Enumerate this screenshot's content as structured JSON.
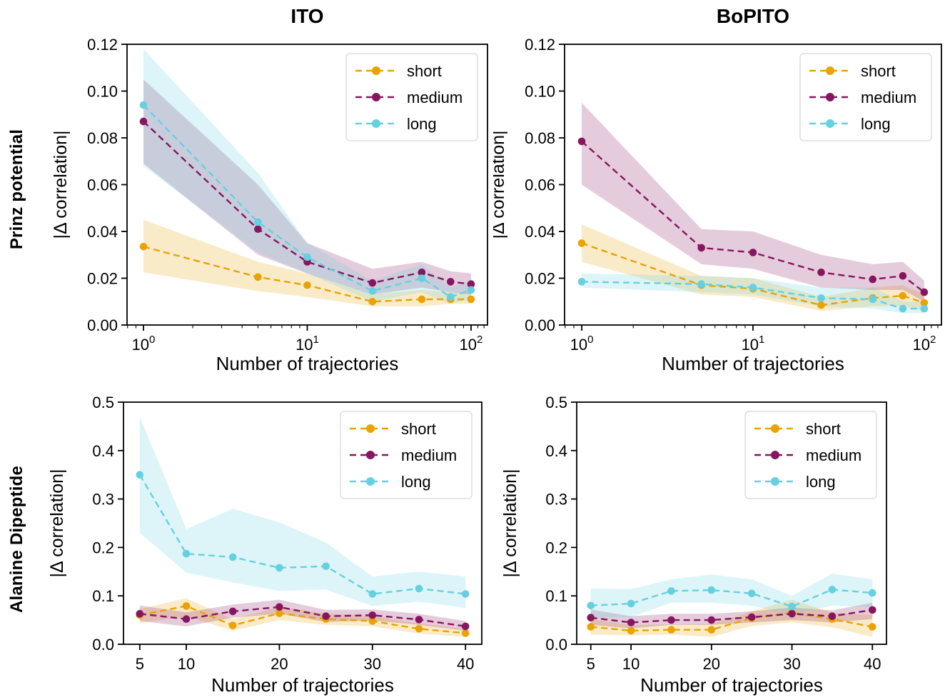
{
  "figure": {
    "row_labels": [
      "Prinz potential",
      "Alanine Dipeptide"
    ],
    "column_titles": [
      "ITO",
      "BoPITO"
    ]
  },
  "style": {
    "colors": {
      "short": "#E9A304",
      "medium": "#871660",
      "long": "#66D0E1"
    },
    "band_opacity": 0.22,
    "axis_color": "#000000",
    "legend_border": "#D8D8D8",
    "background": "#FFFFFF"
  },
  "chart_data": [
    {
      "id": "prinz-ito",
      "type": "line",
      "title": "ITO",
      "xlabel": "Number of trajectories",
      "ylabel": "|Δ correlation|",
      "xscale": "log",
      "xlim": [
        0.794,
        126
      ],
      "ylim": [
        0,
        0.12
      ],
      "grid": false,
      "legend": {
        "position": "top-right",
        "entries": [
          "short",
          "medium",
          "long"
        ]
      },
      "xticks": [
        {
          "v": 1,
          "base": "10",
          "exp": "0"
        },
        {
          "v": 10,
          "base": "10",
          "exp": "1"
        },
        {
          "v": 100,
          "base": "10",
          "exp": "2"
        }
      ],
      "xminor": [
        0.8,
        0.9,
        2,
        3,
        4,
        5,
        6,
        7,
        8,
        9,
        20,
        30,
        40,
        50,
        60,
        70,
        80,
        90,
        110,
        120
      ],
      "yticks": {
        "values": [
          0,
          0.02,
          0.04,
          0.06,
          0.08,
          0.1,
          0.12
        ],
        "labels": [
          "0.00",
          "0.02",
          "0.04",
          "0.06",
          "0.08",
          "0.10",
          "0.12"
        ]
      },
      "x": [
        1,
        5,
        10,
        25,
        50,
        75,
        100
      ],
      "series": [
        {
          "name": "short",
          "color_key": "short",
          "values": [
            0.0335,
            0.0205,
            0.017,
            0.01,
            0.011,
            0.011,
            0.011
          ],
          "band_lower": [
            0.0225,
            0.0145,
            0.012,
            0.008,
            0.008,
            0.009,
            0.009
          ],
          "band_upper": [
            0.045,
            0.027,
            0.022,
            0.013,
            0.015,
            0.014,
            0.014
          ]
        },
        {
          "name": "medium",
          "color_key": "medium",
          "values": [
            0.087,
            0.041,
            0.027,
            0.018,
            0.0225,
            0.0185,
            0.0175
          ],
          "band_lower": [
            0.069,
            0.03,
            0.022,
            0.013,
            0.016,
            0.014,
            0.013
          ],
          "band_upper": [
            0.105,
            0.06,
            0.035,
            0.024,
            0.027,
            0.023,
            0.022
          ]
        },
        {
          "name": "long",
          "color_key": "long",
          "values": [
            0.094,
            0.044,
            0.029,
            0.0145,
            0.02,
            0.012,
            0.015
          ],
          "band_lower": [
            0.068,
            0.031,
            0.022,
            0.01,
            0.014,
            0.009,
            0.011
          ],
          "band_upper": [
            0.118,
            0.065,
            0.035,
            0.019,
            0.026,
            0.016,
            0.019
          ]
        }
      ]
    },
    {
      "id": "prinz-bopito",
      "type": "line",
      "title": "BoPITO",
      "xlabel": "Number of trajectories",
      "ylabel": "|Δ correlation|",
      "xscale": "log",
      "xlim": [
        0.794,
        126
      ],
      "ylim": [
        0,
        0.12
      ],
      "grid": false,
      "legend": {
        "position": "top-right",
        "entries": [
          "short",
          "medium",
          "long"
        ]
      },
      "xticks": [
        {
          "v": 1,
          "base": "10",
          "exp": "0"
        },
        {
          "v": 10,
          "base": "10",
          "exp": "1"
        },
        {
          "v": 100,
          "base": "10",
          "exp": "2"
        }
      ],
      "xminor": [
        0.8,
        0.9,
        2,
        3,
        4,
        5,
        6,
        7,
        8,
        9,
        20,
        30,
        40,
        50,
        60,
        70,
        80,
        90,
        110,
        120
      ],
      "yticks": {
        "values": [
          0,
          0.02,
          0.04,
          0.06,
          0.08,
          0.1,
          0.12
        ],
        "labels": [
          "0.00",
          "0.02",
          "0.04",
          "0.06",
          "0.08",
          "0.10",
          "0.12"
        ]
      },
      "x": [
        1,
        5,
        10,
        25,
        50,
        75,
        100
      ],
      "series": [
        {
          "name": "short",
          "color_key": "short",
          "values": [
            0.035,
            0.017,
            0.0155,
            0.0085,
            0.0115,
            0.0125,
            0.0095
          ],
          "band_lower": [
            0.027,
            0.013,
            0.012,
            0.006,
            0.008,
            0.008,
            0.006
          ],
          "band_upper": [
            0.043,
            0.021,
            0.02,
            0.012,
            0.016,
            0.017,
            0.013
          ]
        },
        {
          "name": "medium",
          "color_key": "medium",
          "values": [
            0.0785,
            0.033,
            0.031,
            0.0225,
            0.0195,
            0.021,
            0.014
          ],
          "band_lower": [
            0.06,
            0.026,
            0.024,
            0.016,
            0.015,
            0.015,
            0.01
          ],
          "band_upper": [
            0.095,
            0.041,
            0.04,
            0.03,
            0.026,
            0.027,
            0.019
          ]
        },
        {
          "name": "long",
          "color_key": "long",
          "values": [
            0.0185,
            0.0175,
            0.016,
            0.0115,
            0.011,
            0.007,
            0.007
          ],
          "band_lower": [
            0.016,
            0.014,
            0.013,
            0.008,
            0.007,
            0.005,
            0.005
          ],
          "band_upper": [
            0.022,
            0.021,
            0.02,
            0.016,
            0.016,
            0.01,
            0.01
          ]
        }
      ]
    },
    {
      "id": "ala-ito",
      "type": "line",
      "title": "",
      "xlabel": "Number of trajectories",
      "ylabel": "|Δ correlation|",
      "xscale": "linear",
      "xlim": [
        3.25,
        41.75
      ],
      "ylim": [
        0,
        0.5
      ],
      "grid": false,
      "legend": {
        "position": "top-right",
        "entries": [
          "short",
          "medium",
          "long"
        ]
      },
      "xticks": [
        {
          "v": 5,
          "label": "5"
        },
        {
          "v": 10,
          "label": "10"
        },
        {
          "v": 20,
          "label": "20"
        },
        {
          "v": 30,
          "label": "30"
        },
        {
          "v": 40,
          "label": "40"
        }
      ],
      "xminor": [],
      "yticks": {
        "values": [
          0,
          0.1,
          0.2,
          0.3,
          0.4,
          0.5
        ],
        "labels": [
          "0.0",
          "0.1",
          "0.2",
          "0.3",
          "0.4",
          "0.5"
        ]
      },
      "x": [
        5,
        10,
        15,
        20,
        25,
        30,
        35,
        40
      ],
      "series": [
        {
          "name": "short",
          "color_key": "short",
          "values": [
            0.06,
            0.079,
            0.039,
            0.064,
            0.052,
            0.048,
            0.032,
            0.023
          ],
          "band_lower": [
            0.044,
            0.058,
            0.028,
            0.05,
            0.04,
            0.037,
            0.022,
            0.015
          ],
          "band_upper": [
            0.073,
            0.095,
            0.052,
            0.077,
            0.064,
            0.058,
            0.043,
            0.032
          ]
        },
        {
          "name": "medium",
          "color_key": "medium",
          "values": [
            0.063,
            0.052,
            0.068,
            0.077,
            0.058,
            0.06,
            0.051,
            0.037
          ],
          "band_lower": [
            0.048,
            0.037,
            0.055,
            0.063,
            0.046,
            0.049,
            0.04,
            0.028
          ],
          "band_upper": [
            0.08,
            0.066,
            0.082,
            0.092,
            0.071,
            0.072,
            0.063,
            0.048
          ]
        },
        {
          "name": "long",
          "color_key": "long",
          "values": [
            0.35,
            0.187,
            0.18,
            0.158,
            0.161,
            0.104,
            0.115,
            0.104
          ],
          "band_lower": [
            0.23,
            0.148,
            0.128,
            0.11,
            0.113,
            0.079,
            0.088,
            0.075
          ],
          "band_upper": [
            0.47,
            0.238,
            0.28,
            0.252,
            0.21,
            0.14,
            0.15,
            0.14
          ]
        }
      ]
    },
    {
      "id": "ala-bopito",
      "type": "line",
      "title": "",
      "xlabel": "Number of trajectories",
      "ylabel": "|Δ correlation|",
      "xscale": "linear",
      "xlim": [
        3.25,
        41.75
      ],
      "ylim": [
        0,
        0.5
      ],
      "grid": false,
      "legend": {
        "position": "top-right",
        "entries": [
          "short",
          "medium",
          "long"
        ]
      },
      "xticks": [
        {
          "v": 5,
          "label": "5"
        },
        {
          "v": 10,
          "label": "10"
        },
        {
          "v": 20,
          "label": "20"
        },
        {
          "v": 30,
          "label": "30"
        },
        {
          "v": 40,
          "label": "40"
        }
      ],
      "xminor": [],
      "yticks": {
        "values": [
          0,
          0.1,
          0.2,
          0.3,
          0.4,
          0.5
        ],
        "labels": [
          "0.0",
          "0.1",
          "0.2",
          "0.3",
          "0.4",
          "0.5"
        ]
      },
      "x": [
        5,
        10,
        15,
        20,
        25,
        30,
        35,
        40
      ],
      "series": [
        {
          "name": "short",
          "color_key": "short",
          "values": [
            0.036,
            0.028,
            0.03,
            0.03,
            0.054,
            0.065,
            0.052,
            0.036
          ],
          "band_lower": [
            0.02,
            0.018,
            0.02,
            0.015,
            0.038,
            0.045,
            0.035,
            0.015
          ],
          "band_upper": [
            0.052,
            0.04,
            0.041,
            0.042,
            0.068,
            0.092,
            0.065,
            0.06
          ]
        },
        {
          "name": "medium",
          "color_key": "medium",
          "values": [
            0.055,
            0.045,
            0.05,
            0.05,
            0.056,
            0.063,
            0.058,
            0.071
          ],
          "band_lower": [
            0.04,
            0.033,
            0.04,
            0.04,
            0.045,
            0.05,
            0.045,
            0.052
          ],
          "band_upper": [
            0.072,
            0.058,
            0.063,
            0.063,
            0.068,
            0.076,
            0.07,
            0.086
          ]
        },
        {
          "name": "long",
          "color_key": "long",
          "values": [
            0.08,
            0.084,
            0.11,
            0.112,
            0.105,
            0.078,
            0.113,
            0.106
          ],
          "band_lower": [
            0.055,
            0.056,
            0.086,
            0.086,
            0.08,
            0.06,
            0.08,
            0.076
          ],
          "band_upper": [
            0.115,
            0.114,
            0.134,
            0.144,
            0.134,
            0.1,
            0.146,
            0.134
          ]
        }
      ]
    }
  ]
}
